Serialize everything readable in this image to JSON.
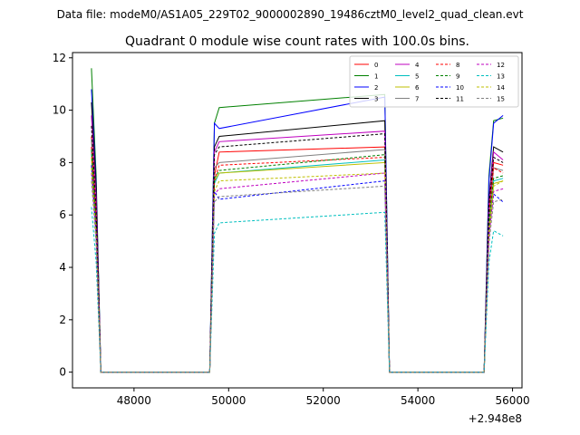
{
  "figure": {
    "suptitle": "Data file: modeM0/AS1A05_229T02_9000002890_19486cztM0_level2_quad_clean.evt"
  },
  "chart_data": {
    "type": "line",
    "title": "Quadrant 0 module wise count rates with 100.0s bins.",
    "xlabel": "",
    "ylabel": "",
    "x_offset_label": "+2.948e8",
    "xlim": [
      46700,
      56200
    ],
    "ylim": [
      -0.6,
      12.2
    ],
    "x_ticks": [
      48000,
      50000,
      52000,
      54000,
      56000
    ],
    "x_tick_labels": [
      "48000",
      "50000",
      "52000",
      "54000",
      "56000"
    ],
    "y_ticks": [
      0,
      2,
      4,
      6,
      8,
      10,
      12
    ],
    "y_tick_labels": [
      "0",
      "2",
      "4",
      "6",
      "8",
      "10",
      "12"
    ],
    "grid": false,
    "legend_position": "top-right",
    "legend_columns": 4,
    "x": [
      47100,
      47200,
      47300,
      49600,
      49700,
      49800,
      53300,
      53400,
      55400,
      55500,
      55600,
      55800
    ],
    "series": [
      {
        "name": "0",
        "color": "#ff0000",
        "dash": "solid",
        "values": [
          9.0,
          6.0,
          0.0,
          0.0,
          7.5,
          8.4,
          8.6,
          0.0,
          0.0,
          6.2,
          8.0,
          7.9
        ]
      },
      {
        "name": "1",
        "color": "#008000",
        "dash": "solid",
        "values": [
          11.6,
          7.5,
          0.0,
          0.0,
          9.5,
          10.1,
          10.6,
          0.0,
          0.0,
          7.5,
          9.6,
          9.7
        ]
      },
      {
        "name": "2",
        "color": "#0000ff",
        "dash": "solid",
        "values": [
          10.8,
          7.2,
          0.0,
          0.0,
          9.5,
          9.3,
          10.5,
          0.0,
          0.0,
          7.3,
          9.5,
          9.8
        ]
      },
      {
        "name": "3",
        "color": "#000000",
        "dash": "solid",
        "values": [
          10.3,
          7.0,
          0.0,
          0.0,
          8.6,
          9.0,
          9.6,
          0.0,
          0.0,
          6.6,
          8.6,
          8.4
        ]
      },
      {
        "name": "4",
        "color": "#bf00bf",
        "dash": "solid",
        "values": [
          9.8,
          6.6,
          0.0,
          0.0,
          8.4,
          8.8,
          9.2,
          0.0,
          0.0,
          6.4,
          8.4,
          8.1
        ]
      },
      {
        "name": "5",
        "color": "#00bfbf",
        "dash": "solid",
        "values": [
          8.4,
          5.6,
          0.0,
          0.0,
          7.2,
          7.6,
          8.1,
          0.0,
          0.0,
          5.6,
          7.3,
          7.4
        ]
      },
      {
        "name": "6",
        "color": "#bfbf00",
        "dash": "solid",
        "values": [
          8.2,
          5.5,
          0.0,
          0.0,
          7.3,
          7.6,
          8.0,
          0.0,
          0.0,
          5.4,
          7.2,
          7.3
        ]
      },
      {
        "name": "7",
        "color": "#808080",
        "dash": "solid",
        "values": [
          8.9,
          5.8,
          0.0,
          0.0,
          7.8,
          8.0,
          8.5,
          0.0,
          0.0,
          5.8,
          7.8,
          7.7
        ]
      },
      {
        "name": "8",
        "color": "#ff0000",
        "dash": "dashed",
        "values": [
          8.6,
          5.9,
          0.0,
          0.0,
          7.3,
          7.9,
          8.2,
          0.0,
          0.0,
          5.9,
          7.8,
          7.6
        ]
      },
      {
        "name": "9",
        "color": "#008000",
        "dash": "dashed",
        "values": [
          8.5,
          5.7,
          0.0,
          0.0,
          7.4,
          7.7,
          8.3,
          0.0,
          0.0,
          5.7,
          7.4,
          7.5
        ]
      },
      {
        "name": "10",
        "color": "#0000ff",
        "dash": "dashed",
        "values": [
          7.9,
          5.3,
          0.0,
          0.0,
          6.9,
          6.6,
          7.3,
          0.0,
          0.0,
          5.3,
          6.8,
          6.5
        ]
      },
      {
        "name": "11",
        "color": "#000000",
        "dash": "dashed",
        "values": [
          9.4,
          6.2,
          0.0,
          0.0,
          8.3,
          8.6,
          9.1,
          0.0,
          0.0,
          6.3,
          8.2,
          8.0
        ]
      },
      {
        "name": "12",
        "color": "#bf00bf",
        "dash": "dashed",
        "values": [
          7.6,
          5.1,
          0.0,
          0.0,
          6.8,
          7.0,
          7.6,
          0.0,
          0.0,
          5.1,
          6.9,
          7.0
        ]
      },
      {
        "name": "13",
        "color": "#00bfbf",
        "dash": "dashed",
        "values": [
          6.3,
          4.2,
          0.0,
          0.0,
          5.3,
          5.7,
          6.1,
          0.0,
          0.0,
          4.2,
          5.4,
          5.2
        ]
      },
      {
        "name": "14",
        "color": "#bfbf00",
        "dash": "dashed",
        "values": [
          7.8,
          5.2,
          0.0,
          0.0,
          6.9,
          7.3,
          7.6,
          0.0,
          0.0,
          5.2,
          7.1,
          7.3
        ]
      },
      {
        "name": "15",
        "color": "#808080",
        "dash": "dashed",
        "values": [
          7.3,
          4.9,
          0.0,
          0.0,
          6.5,
          6.7,
          7.1,
          0.0,
          0.0,
          4.9,
          6.5,
          6.6
        ]
      }
    ]
  }
}
